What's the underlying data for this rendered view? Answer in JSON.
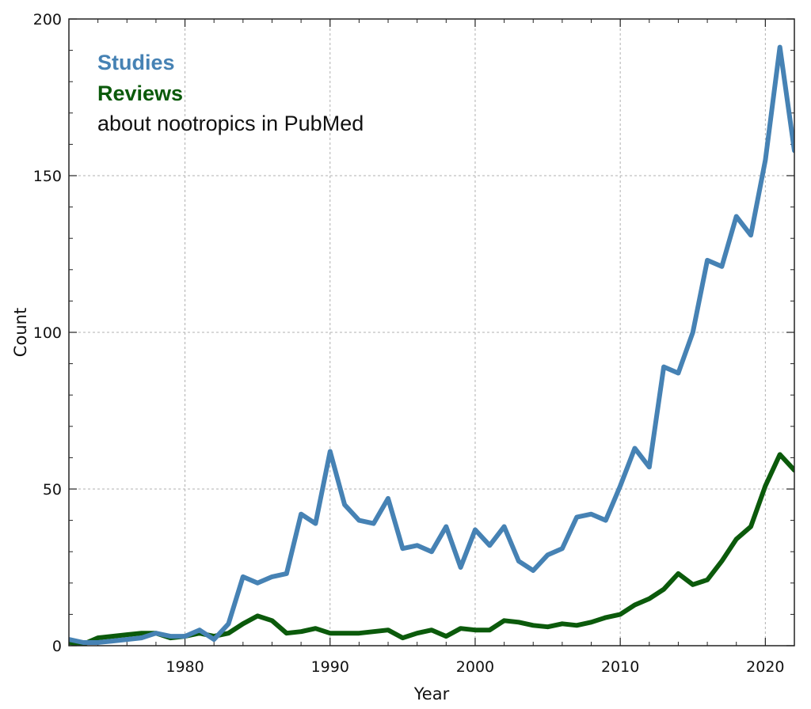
{
  "chart_data": {
    "type": "line",
    "xlabel": "Year",
    "ylabel": "Count",
    "xlim": [
      1972,
      2022
    ],
    "ylim": [
      0,
      200
    ],
    "xticks": [
      1980,
      1990,
      2000,
      2010,
      2020
    ],
    "yticks": [
      0,
      50,
      100,
      150,
      200
    ],
    "grid": true,
    "legend_position": "top-left",
    "annotation": "about nootropics in PubMed",
    "x": [
      1972,
      1973,
      1974,
      1975,
      1976,
      1977,
      1978,
      1979,
      1980,
      1981,
      1982,
      1983,
      1984,
      1985,
      1986,
      1987,
      1988,
      1989,
      1990,
      1991,
      1992,
      1993,
      1994,
      1995,
      1996,
      1997,
      1998,
      1999,
      2000,
      2001,
      2002,
      2003,
      2004,
      2005,
      2006,
      2007,
      2008,
      2009,
      2010,
      2011,
      2012,
      2013,
      2014,
      2015,
      2016,
      2017,
      2018,
      2019,
      2020,
      2021,
      2022
    ],
    "series": [
      {
        "name": "Studies",
        "color": "#4682b4",
        "values": [
          2,
          1,
          1,
          1.5,
          2,
          2.5,
          4,
          3,
          3,
          5,
          2,
          7,
          22,
          20,
          22,
          23,
          42,
          39,
          62,
          45,
          40,
          39,
          47,
          31,
          32,
          30,
          38,
          25,
          37,
          32,
          38,
          27,
          24,
          29,
          31,
          41,
          42,
          40,
          51,
          63,
          57,
          89,
          87,
          100,
          123,
          121,
          137,
          131,
          155,
          191,
          158
        ]
      },
      {
        "name": "Reviews",
        "color": "#0b5a0b",
        "values": [
          1,
          0.5,
          2.5,
          3,
          3.5,
          4,
          4,
          2.5,
          3,
          4,
          3,
          4,
          7,
          9.5,
          8,
          4,
          4.5,
          5.5,
          4,
          4,
          4,
          4.5,
          5,
          2.5,
          4,
          5,
          3,
          5.5,
          5,
          5,
          8,
          7.5,
          6.5,
          6,
          7,
          6.5,
          7.5,
          9,
          10,
          13,
          15,
          18,
          23,
          19.5,
          21,
          27,
          34,
          38,
          51,
          61,
          56
        ]
      }
    ]
  }
}
